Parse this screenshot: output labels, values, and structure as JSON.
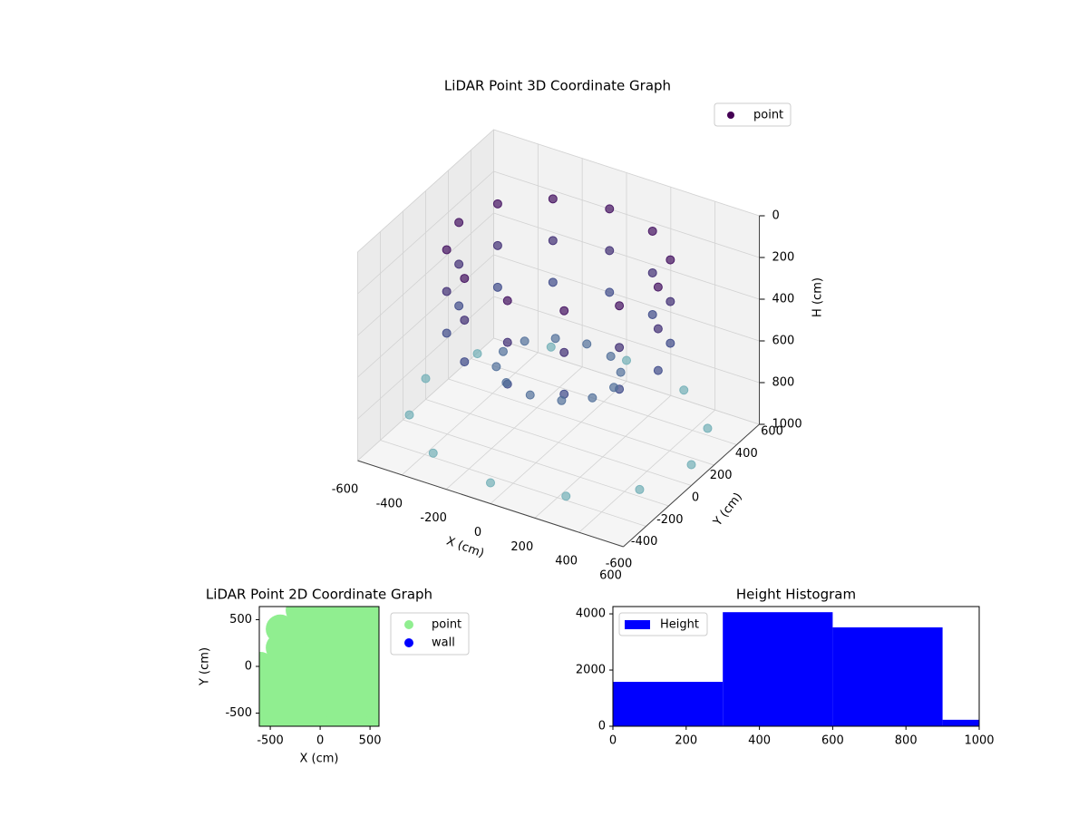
{
  "chart_data": [
    {
      "type": "scatter3d",
      "title": "LiDAR Point 3D Coordinate Graph",
      "xlabel": "X (cm)",
      "ylabel": "Y (cm)",
      "zlabel": "H (cm)",
      "xlim": [
        -600,
        600
      ],
      "ylim": [
        -600,
        600
      ],
      "zlim": [
        0,
        1000
      ],
      "zinverted": true,
      "xticks": [
        -600,
        -400,
        -200,
        0,
        200,
        400,
        600
      ],
      "yticks": [
        -600,
        -400,
        -200,
        0,
        200,
        400,
        600
      ],
      "zticks": [
        0,
        200,
        400,
        600,
        800,
        1000
      ],
      "colormap": [
        "#440154",
        "#3e4a89",
        "#7fc8c2"
      ],
      "legend": "upper right",
      "grid": true,
      "series": [
        {
          "name": "point",
          "color": "#440154",
          "x": [
            450,
            390,
            225,
            0,
            -225,
            -390,
            -450,
            -390,
            -225,
            0,
            225,
            390,
            450,
            390,
            225,
            0,
            -225,
            -390,
            -450,
            -390,
            -225,
            0,
            225,
            390,
            450,
            390,
            225,
            0,
            -225,
            -390,
            -450,
            -390,
            -225,
            0,
            225,
            390,
            250,
            217,
            125,
            0,
            -125,
            -217,
            -250,
            -217,
            -125,
            0,
            125,
            217,
            600,
            520,
            300,
            0,
            -300,
            -520,
            -600,
            -520,
            -300,
            0,
            300,
            520
          ],
          "y": [
            0,
            225,
            390,
            450,
            390,
            225,
            0,
            -225,
            -390,
            -450,
            -390,
            -225,
            0,
            225,
            390,
            450,
            390,
            225,
            0,
            -225,
            -390,
            -450,
            -390,
            -225,
            0,
            225,
            390,
            450,
            390,
            225,
            0,
            -225,
            -390,
            -450,
            -390,
            -225,
            0,
            125,
            217,
            250,
            217,
            125,
            0,
            -125,
            -217,
            -250,
            -217,
            -125,
            0,
            300,
            520,
            600,
            520,
            300,
            0,
            -300,
            -520,
            -600,
            -520,
            -300
          ],
          "z": [
            100,
            100,
            100,
            100,
            100,
            100,
            100,
            100,
            100,
            100,
            100,
            100,
            300,
            300,
            300,
            300,
            300,
            300,
            300,
            300,
            300,
            300,
            300,
            300,
            500,
            500,
            500,
            500,
            500,
            500,
            500,
            500,
            500,
            500,
            500,
            500,
            650,
            650,
            650,
            650,
            650,
            650,
            650,
            650,
            650,
            650,
            650,
            650,
            900,
            900,
            900,
            900,
            900,
            900,
            900,
            900,
            900,
            900,
            900,
            900
          ]
        }
      ]
    },
    {
      "type": "scatter",
      "title": "LiDAR Point 2D Coordinate Graph",
      "xlabel": "X (cm)",
      "ylabel": "Y (cm)",
      "xlim": [
        -610,
        590
      ],
      "ylim": [
        -640,
        640
      ],
      "xticks": [
        -500,
        0,
        500
      ],
      "yticks": [
        -500,
        0,
        500
      ],
      "legend": "outside right",
      "series": [
        {
          "name": "point",
          "color": "#90ee90",
          "x": [
            -600,
            -400,
            -200,
            0,
            200,
            400,
            600,
            -600,
            -400,
            -200,
            0,
            200,
            400,
            600,
            -600,
            -400,
            -200,
            0,
            200,
            400,
            600,
            -600,
            -400,
            -200,
            0,
            200,
            400,
            600,
            -400,
            -200,
            0,
            200,
            400,
            600,
            -400,
            -200,
            0,
            200,
            400,
            600,
            -200,
            0,
            200,
            400,
            600
          ],
          "y": [
            -600,
            -600,
            -600,
            -600,
            -600,
            -600,
            -600,
            -400,
            -400,
            -400,
            -400,
            -400,
            -400,
            -400,
            -200,
            -200,
            -200,
            -200,
            -200,
            -200,
            -200,
            0,
            0,
            0,
            0,
            0,
            0,
            0,
            200,
            200,
            200,
            200,
            200,
            200,
            400,
            400,
            400,
            400,
            400,
            400,
            600,
            600,
            600,
            600,
            600
          ]
        },
        {
          "name": "wall",
          "color": "#0000ff",
          "x": [],
          "y": []
        }
      ]
    },
    {
      "type": "histogram",
      "title": "Height Histogram",
      "name": "Height",
      "color": "#0000ff",
      "bins": [
        0,
        300,
        600,
        900,
        1000
      ],
      "values": [
        1580,
        4060,
        3520,
        230
      ],
      "xlim": [
        0,
        1000
      ],
      "ylim": [
        0,
        4260
      ],
      "xticks": [
        0,
        200,
        400,
        600,
        800,
        1000
      ],
      "yticks": [
        0,
        2000,
        4000
      ],
      "legend": "upper left"
    }
  ]
}
